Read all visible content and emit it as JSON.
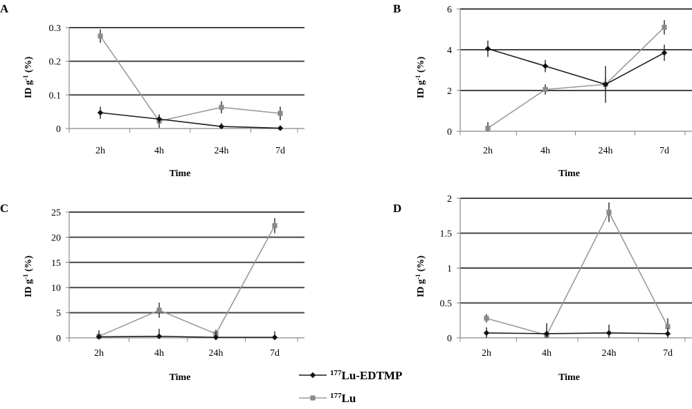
{
  "legend": {
    "items": [
      {
        "sup": "177",
        "main": "Lu-EDTMP",
        "color": "#1a1a1a",
        "marker": "diamond"
      },
      {
        "sup": "177",
        "main": "Lu",
        "color": "#9a9a9a",
        "marker": "square"
      }
    ]
  },
  "chart_data": [
    {
      "type": "line",
      "panel": "A",
      "categories": [
        "2h",
        "4h",
        "24h",
        "7d"
      ],
      "xlabel": "Time",
      "ylabel": "ID g-1 (%)",
      "ylim": [
        0,
        0.3
      ],
      "yticks": [
        0,
        0.1,
        0.2,
        0.3
      ],
      "ytick_labels": [
        "0",
        "0.1",
        "0.2",
        "0.3"
      ],
      "grid": true,
      "series": [
        {
          "name": "177Lu-EDTMP",
          "color": "#1a1a1a",
          "marker": "diamond",
          "values": [
            0.047,
            0.028,
            0.006,
            0.001
          ],
          "errors": [
            0.018,
            0.012,
            0.01,
            0.008
          ]
        },
        {
          "name": "177Lu",
          "color": "#9a9a9a",
          "marker": "square",
          "values": [
            0.275,
            0.022,
            0.063,
            0.045
          ],
          "errors": [
            0.02,
            0.02,
            0.018,
            0.02
          ]
        }
      ]
    },
    {
      "type": "line",
      "panel": "B",
      "categories": [
        "2h",
        "4h",
        "24h",
        "7d"
      ],
      "xlabel": "Time",
      "ylabel": "ID g-1 (%)",
      "ylim": [
        0,
        6
      ],
      "yticks": [
        0,
        2,
        4,
        6
      ],
      "ytick_labels": [
        "0",
        "2",
        "4",
        "6"
      ],
      "grid": true,
      "series": [
        {
          "name": "177Lu-EDTMP",
          "color": "#1a1a1a",
          "marker": "diamond",
          "values": [
            4.05,
            3.2,
            2.3,
            3.85
          ],
          "errors": [
            0.4,
            0.3,
            0.9,
            0.4
          ]
        },
        {
          "name": "177Lu",
          "color": "#9a9a9a",
          "marker": "square",
          "values": [
            0.15,
            2.05,
            2.3,
            5.1
          ],
          "errors": [
            0.3,
            0.25,
            0.3,
            0.35
          ]
        }
      ]
    },
    {
      "type": "line",
      "panel": "C",
      "categories": [
        "2h",
        "4h",
        "24h",
        "7d"
      ],
      "xlabel": "Time",
      "ylabel": "ID g-1 (%)",
      "ylim": [
        0,
        25
      ],
      "yticks": [
        0,
        5,
        10,
        15,
        20,
        25
      ],
      "ytick_labels": [
        "0",
        "5",
        "10",
        "15",
        "20",
        "25"
      ],
      "grid": true,
      "series": [
        {
          "name": "177Lu-EDTMP",
          "color": "#1a1a1a",
          "marker": "diamond",
          "values": [
            0.2,
            0.3,
            0.1,
            0.1
          ],
          "errors": [
            1.3,
            1.5,
            1.2,
            1.2
          ]
        },
        {
          "name": "177Lu",
          "color": "#9a9a9a",
          "marker": "square",
          "values": [
            0.3,
            5.5,
            0.8,
            22.3
          ],
          "errors": [
            0.6,
            1.5,
            0.8,
            1.5
          ]
        }
      ]
    },
    {
      "type": "line",
      "panel": "D",
      "categories": [
        "2h",
        "4h",
        "24h",
        "7d"
      ],
      "xlabel": "Time",
      "ylabel": "ID g-1 (%)",
      "ylim": [
        0,
        2
      ],
      "yticks": [
        0,
        0.5,
        1,
        1.5,
        2
      ],
      "ytick_labels": [
        "0",
        "0.5",
        "1",
        "1.5",
        "2"
      ],
      "grid": true,
      "series": [
        {
          "name": "177Lu-EDTMP",
          "color": "#1a1a1a",
          "marker": "diamond",
          "values": [
            0.07,
            0.06,
            0.07,
            0.06
          ],
          "errors": [
            0.08,
            0.15,
            0.12,
            0.08
          ]
        },
        {
          "name": "177Lu",
          "color": "#9a9a9a",
          "marker": "square",
          "values": [
            0.28,
            0.04,
            1.8,
            0.16
          ],
          "errors": [
            0.06,
            0.06,
            0.14,
            0.12
          ]
        }
      ]
    }
  ]
}
